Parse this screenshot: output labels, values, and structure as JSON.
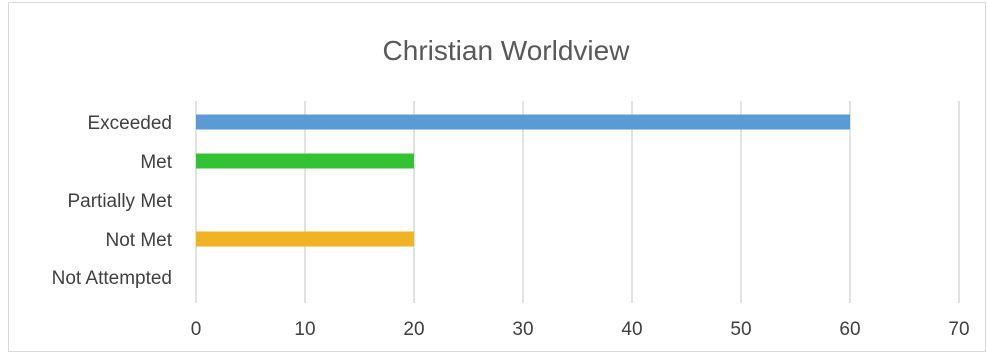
{
  "chart_data": {
    "type": "bar",
    "orientation": "horizontal",
    "title": "Christian Worldview",
    "categories": [
      "Exceeded",
      "Met",
      "Partially Met",
      "Not Met",
      "Not Attempted"
    ],
    "values": [
      60,
      20,
      0,
      20,
      0
    ],
    "bar_colors": [
      "#5b9bd5",
      "#33c233",
      "#a5a5a5",
      "#f0b323",
      "#a5a5a5"
    ],
    "x_ticks": [
      "0",
      "10",
      "20",
      "30",
      "40",
      "50",
      "60",
      "70"
    ],
    "xlim": [
      0,
      70
    ],
    "grid": true,
    "legend": "none"
  }
}
